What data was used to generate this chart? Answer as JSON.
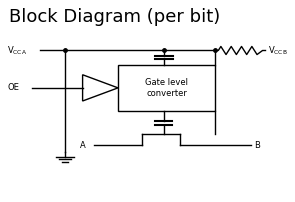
{
  "title": "Block Diagram (per bit)",
  "title_fontsize": 13,
  "background_color": "#ffffff",
  "line_color": "#000000",
  "text_color": "#000000",
  "fig_width": 2.95,
  "fig_height": 2.02,
  "dpi": 100,
  "xlim": [
    0,
    10
  ],
  "ylim": [
    0,
    10
  ]
}
